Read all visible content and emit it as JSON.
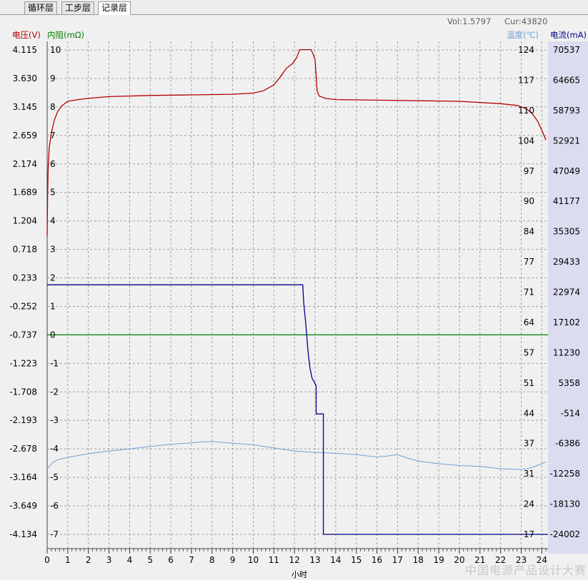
{
  "tabs": [
    {
      "label": "循环层",
      "active": false
    },
    {
      "label": "工步层",
      "active": false
    },
    {
      "label": "记录层",
      "active": true
    }
  ],
  "status": {
    "vol": "Vol:1.5797",
    "cur": "Cur:43820"
  },
  "watermark": "中国电源产品设计大赛",
  "axes_labels": {
    "voltage": "电压(V)",
    "resistance": "内阻(mΩ)",
    "temperature": "温度(℃)",
    "current": "电流(mA)",
    "x": "小时"
  },
  "colors": {
    "voltage": "#b40000",
    "resistance": "#008000",
    "temperature": "#6ea0d8",
    "current": "#00008c",
    "grid": "#a0a0a0",
    "plot_bg": "#f0f0f0",
    "right_panel": "#dcdcf0"
  },
  "chart_data": {
    "type": "line",
    "grid": true,
    "x": {
      "label": "小时",
      "min": 0,
      "max": 24.3,
      "ticks": [
        0,
        1,
        2,
        3,
        4,
        5,
        6,
        7,
        8,
        9,
        10,
        11,
        12,
        13,
        14,
        15,
        16,
        17,
        18,
        19,
        20,
        21,
        22,
        23,
        24
      ]
    },
    "y_axes": {
      "voltage": {
        "label": "电压(V)",
        "min": -4.134,
        "max": 4.115,
        "ticks": [
          "4.115",
          "3.630",
          "3.145",
          "2.659",
          "2.174",
          "1.689",
          "1.204",
          "0.718",
          "0.233",
          "-0.252",
          "-0.737",
          "-1.223",
          "-1.708",
          "-2.193",
          "-2.678",
          "-3.164",
          "-3.649",
          "-4.134"
        ]
      },
      "resistance": {
        "label": "内阻(mΩ)",
        "min": -7,
        "max": 10,
        "ticks": [
          "10",
          "9",
          "8",
          "7",
          "6",
          "5",
          "4",
          "3",
          "2",
          "1",
          "0",
          "-1",
          "-2",
          "-3",
          "-4",
          "-5",
          "-6",
          "-7"
        ]
      },
      "temperature": {
        "label": "温度(℃)",
        "min": 17,
        "max": 124,
        "ticks": [
          "124",
          "117",
          "110",
          "104",
          "97",
          "90",
          "84",
          "77",
          "71",
          "64",
          "57",
          "51",
          "44",
          "37",
          "31",
          "24",
          "17"
        ]
      },
      "current": {
        "label": "电流(mA)",
        "min": -24002,
        "max": 70537,
        "ticks": [
          "70537",
          "64665",
          "58793",
          "52921",
          "47049",
          "41177",
          "35305",
          "29433",
          "22974",
          "17102",
          "11230",
          "5358",
          "-514",
          "-6386",
          "-12258",
          "-18130",
          "-24002"
        ]
      }
    },
    "series": [
      {
        "name": "电压(V)",
        "axis": "voltage",
        "points": [
          [
            0,
            0.95
          ],
          [
            0.02,
            1.6
          ],
          [
            0.05,
            2.1
          ],
          [
            0.1,
            2.45
          ],
          [
            0.2,
            2.7
          ],
          [
            0.35,
            2.92
          ],
          [
            0.5,
            3.06
          ],
          [
            0.7,
            3.16
          ],
          [
            1,
            3.24
          ],
          [
            1.5,
            3.27
          ],
          [
            2,
            3.29
          ],
          [
            3,
            3.32
          ],
          [
            5,
            3.34
          ],
          [
            7,
            3.35
          ],
          [
            9,
            3.36
          ],
          [
            10,
            3.38
          ],
          [
            10.5,
            3.42
          ],
          [
            11,
            3.52
          ],
          [
            11.3,
            3.65
          ],
          [
            11.6,
            3.8
          ],
          [
            11.9,
            3.88
          ],
          [
            12.1,
            3.98
          ],
          [
            12.25,
            4.12
          ],
          [
            12.8,
            4.12
          ],
          [
            12.9,
            4.05
          ],
          [
            13.0,
            3.95
          ],
          [
            13.1,
            3.42
          ],
          [
            13.2,
            3.33
          ],
          [
            13.5,
            3.29
          ],
          [
            14,
            3.27
          ],
          [
            16,
            3.26
          ],
          [
            18,
            3.25
          ],
          [
            20,
            3.24
          ],
          [
            22,
            3.2
          ],
          [
            22.8,
            3.17
          ],
          [
            23.2,
            3.12
          ],
          [
            23.5,
            3.05
          ],
          [
            23.8,
            2.9
          ],
          [
            24.0,
            2.75
          ],
          [
            24.2,
            2.58
          ]
        ]
      },
      {
        "name": "内阻(mΩ)",
        "axis": "resistance",
        "points": [
          [
            0,
            0
          ],
          [
            24.3,
            0
          ]
        ]
      },
      {
        "name": "温度(℃)",
        "axis": "temperature",
        "points": [
          [
            0,
            31.5
          ],
          [
            0.3,
            33
          ],
          [
            0.6,
            33.6
          ],
          [
            1,
            34
          ],
          [
            2,
            34.8
          ],
          [
            3,
            35.4
          ],
          [
            4,
            35.9
          ],
          [
            5,
            36.4
          ],
          [
            6,
            36.9
          ],
          [
            7,
            37.2
          ],
          [
            7.5,
            37.4
          ],
          [
            8,
            37.5
          ],
          [
            9,
            37.1
          ],
          [
            10,
            36.8
          ],
          [
            11,
            36.1
          ],
          [
            12,
            35.4
          ],
          [
            13,
            35.1
          ],
          [
            14,
            34.9
          ],
          [
            15,
            34.6
          ],
          [
            16,
            34.1
          ],
          [
            16.5,
            34.3
          ],
          [
            17,
            34.6
          ],
          [
            17.5,
            33.8
          ],
          [
            18,
            33.2
          ],
          [
            19,
            32.6
          ],
          [
            20,
            32.2
          ],
          [
            21,
            32.0
          ],
          [
            22,
            31.5
          ],
          [
            23,
            31.3
          ],
          [
            23.5,
            31.7
          ],
          [
            24,
            32.6
          ],
          [
            24.2,
            33.0
          ]
        ]
      },
      {
        "name": "电流(mA)",
        "axis": "current",
        "points": [
          [
            0,
            24700
          ],
          [
            12.4,
            24700
          ],
          [
            12.45,
            21000
          ],
          [
            12.55,
            17100
          ],
          [
            12.65,
            12000
          ],
          [
            12.75,
            8500
          ],
          [
            12.85,
            6500
          ],
          [
            13.05,
            5000
          ],
          [
            13.05,
            -500
          ],
          [
            13.4,
            -500
          ],
          [
            13.4,
            -24002
          ],
          [
            24.3,
            -24002
          ]
        ]
      }
    ]
  }
}
